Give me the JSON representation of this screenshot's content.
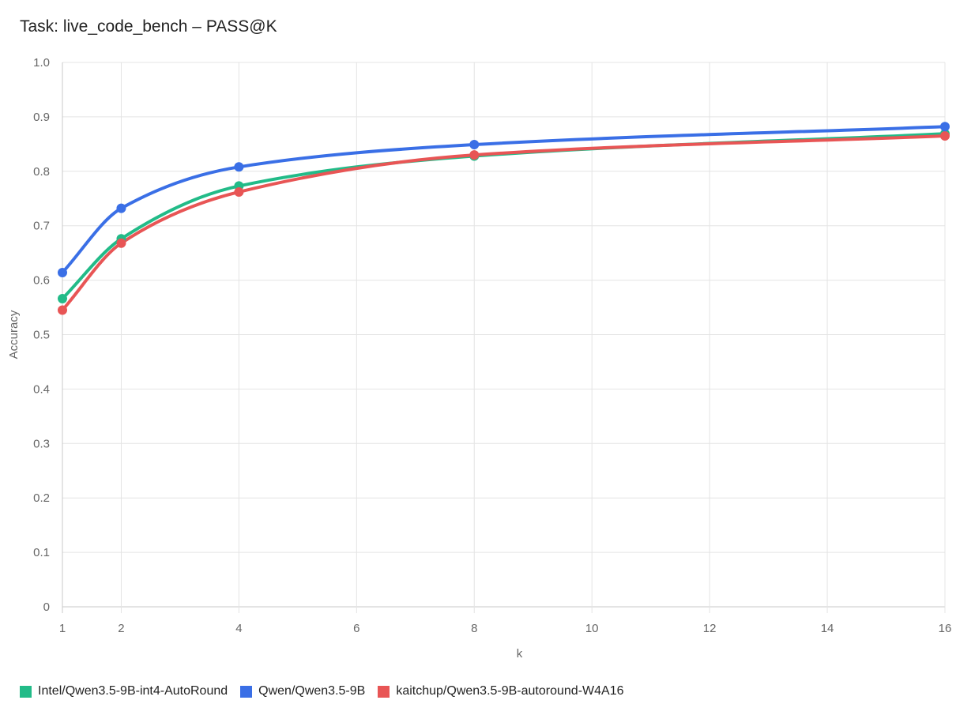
{
  "chart_data": {
    "type": "line",
    "title": "Task: live_code_bench – PASS@K",
    "xlabel": "k",
    "ylabel": "Accuracy",
    "x": [
      1,
      2,
      4,
      8,
      16
    ],
    "xlim": [
      1,
      16
    ],
    "ylim": [
      0,
      1.0
    ],
    "x_ticks": [
      "1",
      "2",
      "4",
      "6",
      "8",
      "10",
      "12",
      "14",
      "16"
    ],
    "y_ticks": [
      "0",
      "0.1",
      "0.2",
      "0.3",
      "0.4",
      "0.5",
      "0.6",
      "0.7",
      "0.8",
      "0.9",
      "1.0"
    ],
    "grid": true,
    "legend_position": "bottom-left",
    "series": [
      {
        "name": "Intel/Qwen3.5-9B-int4-AutoRound",
        "color": "#22bb88",
        "values": [
          0.566,
          0.676,
          0.773,
          0.828,
          0.869
        ]
      },
      {
        "name": "Qwen/Qwen3.5-9B",
        "color": "#3a6fe6",
        "values": [
          0.614,
          0.732,
          0.808,
          0.849,
          0.882
        ]
      },
      {
        "name": "kaitchup/Qwen3.5-9B-autoround-W4A16",
        "color": "#e85555",
        "values": [
          0.545,
          0.668,
          0.762,
          0.83,
          0.865
        ]
      }
    ]
  }
}
